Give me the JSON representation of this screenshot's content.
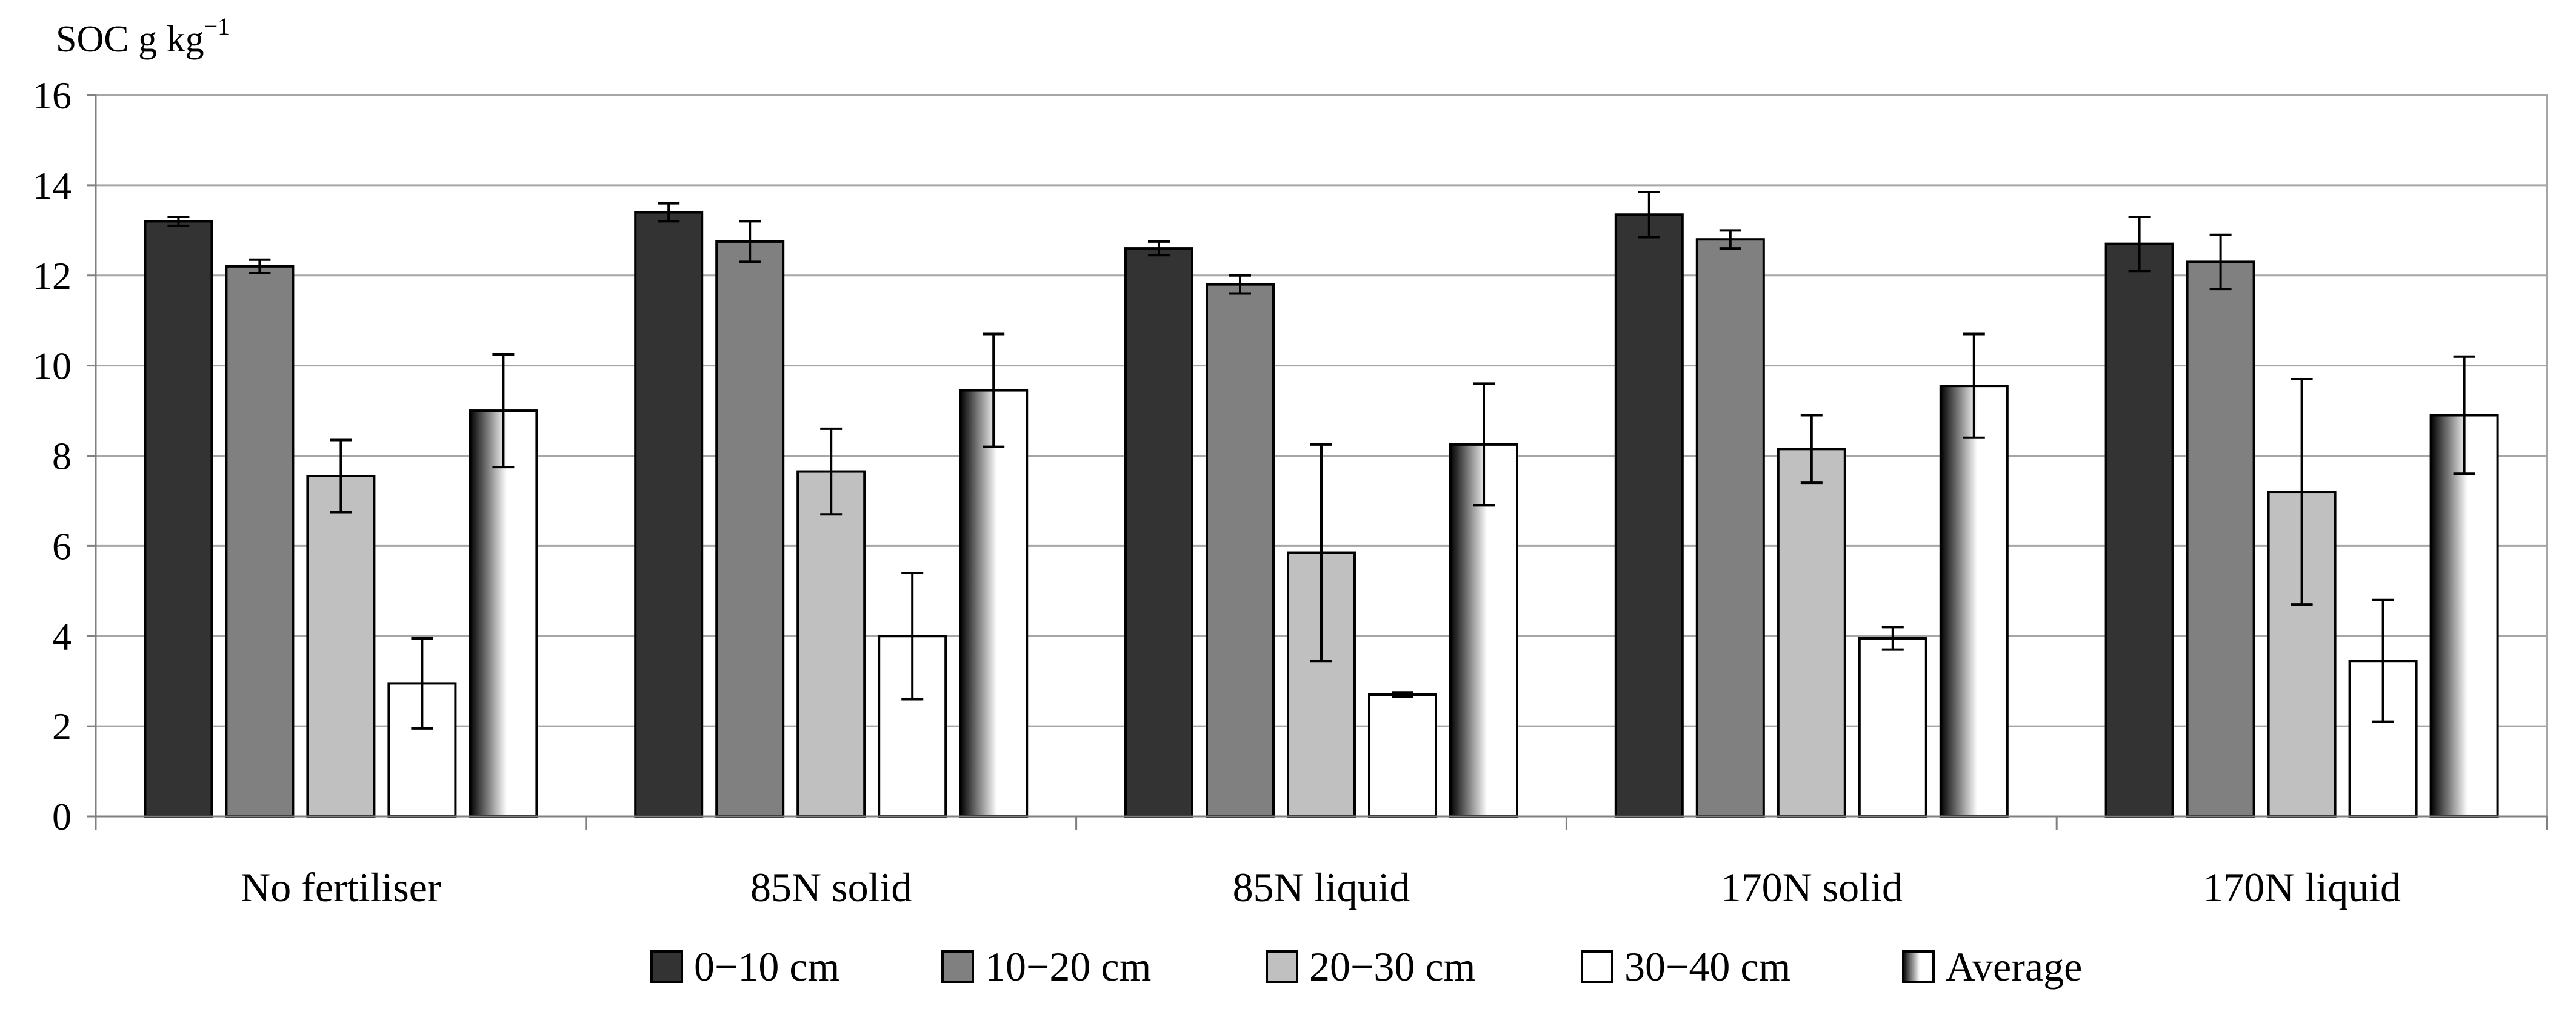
{
  "chart_data": {
    "type": "bar",
    "ylabel": "SOC g kg",
    "ylabel_superscript": "−1",
    "ylim": [
      0,
      16
    ],
    "yticks": [
      "0",
      "2",
      "4",
      "6",
      "8",
      "10",
      "12",
      "14",
      "16"
    ],
    "grid": true,
    "legend_placement": "bottom",
    "categories": [
      "No fertiliser",
      "85N solid",
      "85N liquid",
      "170N solid",
      "170N liquid"
    ],
    "series": [
      {
        "name": "0−10 cm",
        "color": "#333333",
        "fill": "solid",
        "values": [
          13.2,
          13.4,
          12.6,
          13.35,
          12.7
        ],
        "errors": [
          0.1,
          0.2,
          0.15,
          0.5,
          0.6
        ]
      },
      {
        "name": "10−20 cm",
        "color": "#808080",
        "fill": "solid",
        "values": [
          12.2,
          12.75,
          11.8,
          12.8,
          12.3
        ],
        "errors": [
          0.15,
          0.45,
          0.2,
          0.2,
          0.6
        ]
      },
      {
        "name": "20−30 cm",
        "color": "#c0c0c0",
        "fill": "solid",
        "values": [
          7.55,
          7.65,
          5.85,
          8.15,
          7.2
        ],
        "errors": [
          0.8,
          0.95,
          2.4,
          0.75,
          2.5
        ]
      },
      {
        "name": "30−40 cm",
        "color": "#ffffff",
        "fill": "solid",
        "values": [
          2.95,
          4.0,
          2.7,
          3.95,
          3.45
        ],
        "errors": [
          1.0,
          1.4,
          0.05,
          0.25,
          1.35
        ]
      },
      {
        "name": "Average",
        "color": "#000000",
        "fill": "gradient",
        "values": [
          9.0,
          9.45,
          8.25,
          9.55,
          8.9
        ],
        "errors": [
          1.25,
          1.25,
          1.35,
          1.15,
          1.3
        ]
      }
    ]
  }
}
